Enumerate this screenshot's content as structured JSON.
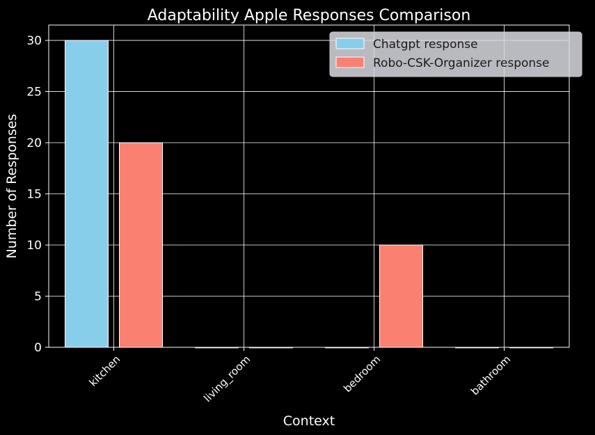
{
  "chart_data": {
    "type": "bar",
    "title": "Adaptability Apple Responses Comparison",
    "xlabel": "Context",
    "ylabel": "Number of Responses",
    "categories": [
      "kitchen",
      "living_room",
      "bedroom",
      "bathroom"
    ],
    "series": [
      {
        "name": "Chatgpt response",
        "values": [
          30,
          0,
          0,
          0
        ],
        "color": "#87ceeb"
      },
      {
        "name": "Robo-CSK-Organizer response",
        "values": [
          20,
          0,
          10,
          0
        ],
        "color": "#fa8072"
      }
    ],
    "ylim": [
      0,
      31.5
    ],
    "yticks": [
      0,
      5,
      10,
      15,
      20,
      25,
      30
    ],
    "grid": true,
    "legend": "top-right",
    "background": "#000000",
    "grid_color": "#ffffff",
    "bar_edge_color": "#ffffff"
  }
}
